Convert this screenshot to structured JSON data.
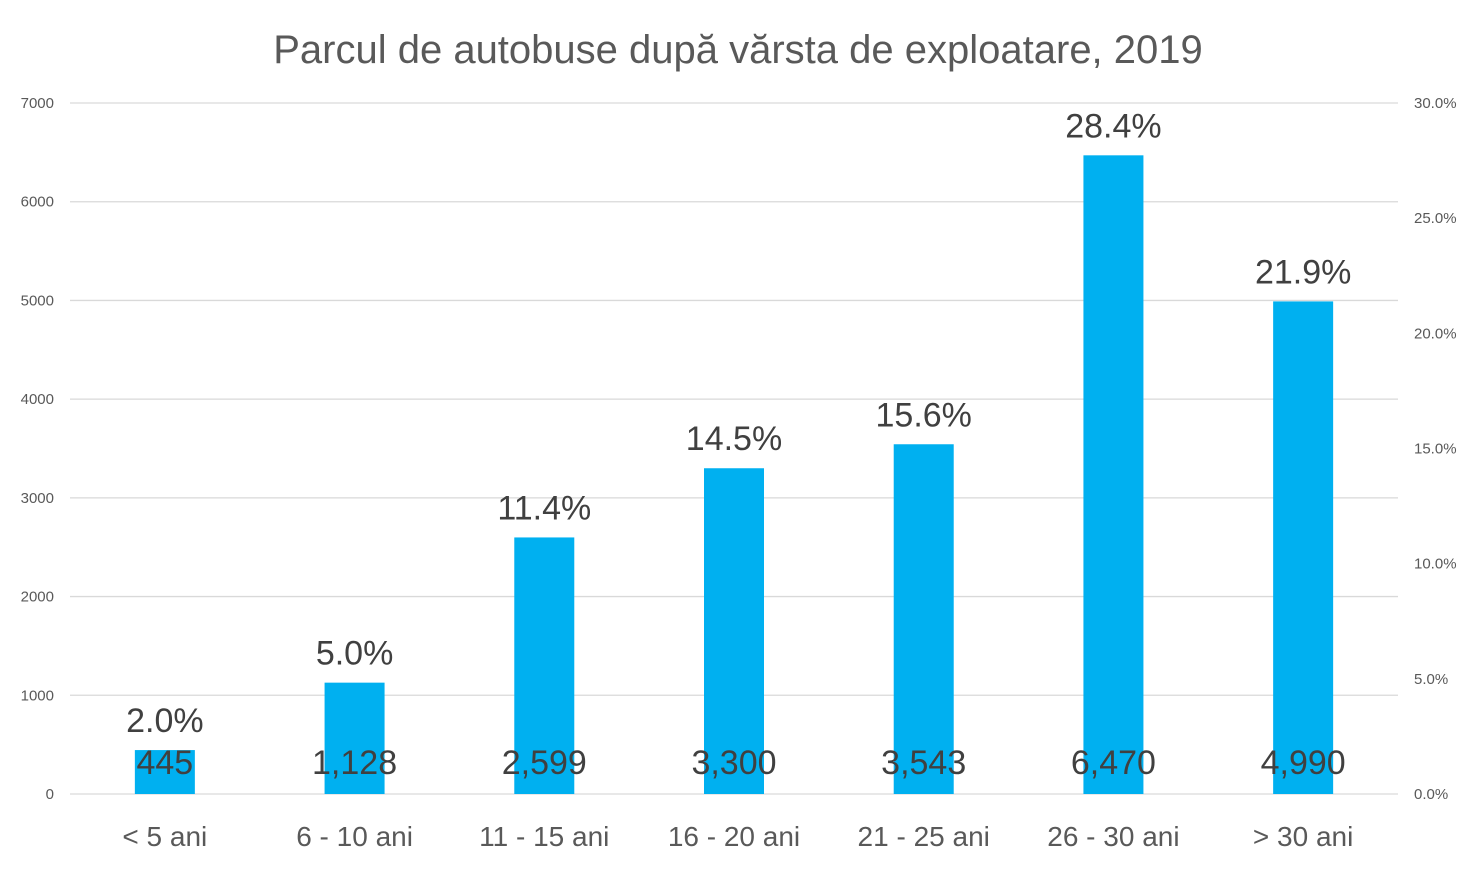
{
  "chart_data": {
    "type": "bar",
    "title": "Parcul de autobuse după vărsta de exploatare, 2019",
    "categories": [
      "< 5 ani",
      "6 - 10 ani",
      "11 - 15 ani",
      "16 - 20 ani",
      "21 - 25 ani",
      "26 - 30 ani",
      "> 30 ani"
    ],
    "series": [
      {
        "values": [
          445,
          1128,
          2599,
          3300,
          3543,
          6470,
          4990
        ],
        "value_labels": [
          "445",
          "1,128",
          "2,599",
          "3,300",
          "3,543",
          "6,470",
          "4,990"
        ],
        "percent_labels": [
          "2.0%",
          "5.0%",
          "11.4%",
          "14.5%",
          "15.6%",
          "28.4%",
          "21.9%"
        ],
        "percent_values": [
          2.0,
          5.0,
          11.4,
          14.5,
          15.6,
          28.4,
          21.9
        ],
        "color": "#00b0f0"
      }
    ],
    "ylim": [
      0,
      7000
    ],
    "yticks": [
      "0",
      "1000",
      "2000",
      "3000",
      "4000",
      "5000",
      "6000",
      "7000"
    ],
    "y2lim": [
      0,
      30
    ],
    "y2ticks": [
      "0.0%",
      "5.0%",
      "10.0%",
      "15.0%",
      "20.0%",
      "25.0%",
      "30.0%"
    ],
    "grid": true,
    "legend": "none"
  }
}
